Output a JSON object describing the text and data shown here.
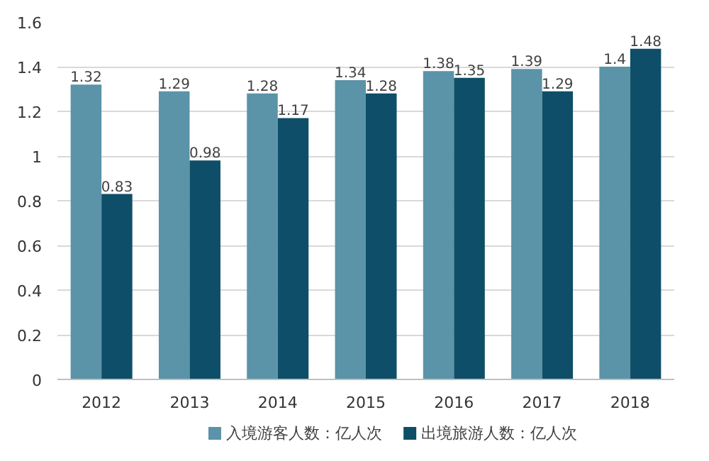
{
  "chart_data": {
    "type": "bar",
    "categories": [
      "2012",
      "2013",
      "2014",
      "2015",
      "2016",
      "2017",
      "2018"
    ],
    "series": [
      {
        "name": "入境游客人数：亿人次",
        "color": "#5b93a8",
        "values": [
          1.32,
          1.29,
          1.28,
          1.34,
          1.38,
          1.39,
          1.4
        ]
      },
      {
        "name": "出境旅游人数：亿人次",
        "color": "#0e4e68",
        "values": [
          0.83,
          0.98,
          1.17,
          1.28,
          1.35,
          1.29,
          1.48
        ]
      }
    ],
    "ylim": [
      0,
      1.6
    ],
    "yticks": [
      0,
      0.2,
      0.4,
      0.6,
      0.8,
      1,
      1.2,
      1.4,
      1.6
    ],
    "grid": "y",
    "legend": "bottom",
    "data_labels": true
  }
}
